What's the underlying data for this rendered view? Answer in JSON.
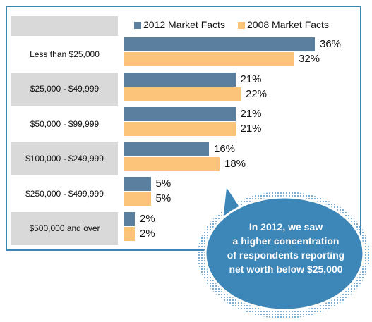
{
  "chart_data": {
    "type": "bar",
    "orientation": "horizontal",
    "categories": [
      "Less than $25,000",
      "$25,000 - $49,999",
      "$50,000 - $99,999",
      "$100,000 - $249,999",
      "$250,000 - $499,999",
      "$500,000 and over"
    ],
    "series": [
      {
        "name": "2012 Market Facts",
        "values": [
          36,
          21,
          21,
          16,
          5,
          2
        ],
        "labels": [
          "36%",
          "21%",
          "21%",
          "16%",
          "5%",
          "2%"
        ],
        "color": "#5b7f9e"
      },
      {
        "name": "2008 Market Facts",
        "values": [
          32,
          22,
          21,
          18,
          5,
          2
        ],
        "labels": [
          "32%",
          "22%",
          "21%",
          "18%",
          "5%",
          "2%"
        ],
        "color": "#fcc37a"
      }
    ],
    "xlim": [
      0,
      36
    ],
    "legend": "top",
    "grid": false
  },
  "callout": {
    "lines": [
      "In 2012, we saw",
      "a higher concentration",
      "of respondents reporting",
      "net worth below $25,000"
    ],
    "fill": "#3d86b8"
  },
  "colors": {
    "frame": "#3d86b8",
    "band": "#d9d9d9"
  }
}
